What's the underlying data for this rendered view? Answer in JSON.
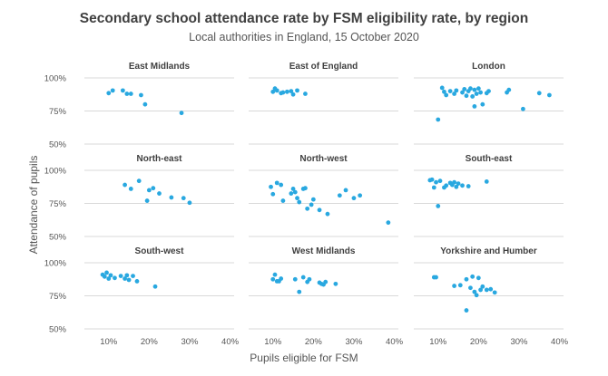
{
  "chart_data": {
    "type": "scatter",
    "title": "Secondary school attendance rate by FSM eligibility rate, by region",
    "subtitle": "Local authorities in England, 15 October 2020",
    "xlabel": "Pupils eligible for FSM",
    "ylabel": "Attendance of pupils",
    "x_ticks": [
      "10%",
      "20%",
      "30%",
      "40%"
    ],
    "y_ticks": [
      "100%",
      "75%",
      "50%"
    ],
    "xlim": [
      0.04,
      0.41
    ],
    "ylim": [
      0.5,
      1.0
    ],
    "grid": "horizontal",
    "point_color": "#29a8e0",
    "panels": [
      {
        "name": "East Midlands",
        "points": [
          [
            0.1,
            0.885
          ],
          [
            0.11,
            0.905
          ],
          [
            0.135,
            0.905
          ],
          [
            0.145,
            0.88
          ],
          [
            0.155,
            0.88
          ],
          [
            0.18,
            0.87
          ],
          [
            0.19,
            0.8
          ],
          [
            0.28,
            0.735
          ]
        ]
      },
      {
        "name": "East of England",
        "points": [
          [
            0.1,
            0.895
          ],
          [
            0.105,
            0.92
          ],
          [
            0.11,
            0.905
          ],
          [
            0.12,
            0.885
          ],
          [
            0.125,
            0.89
          ],
          [
            0.135,
            0.895
          ],
          [
            0.145,
            0.9
          ],
          [
            0.15,
            0.875
          ],
          [
            0.16,
            0.905
          ],
          [
            0.18,
            0.88
          ]
        ]
      },
      {
        "name": "London",
        "points": [
          [
            0.1,
            0.685
          ],
          [
            0.11,
            0.925
          ],
          [
            0.115,
            0.895
          ],
          [
            0.12,
            0.87
          ],
          [
            0.13,
            0.9
          ],
          [
            0.14,
            0.88
          ],
          [
            0.145,
            0.905
          ],
          [
            0.16,
            0.89
          ],
          [
            0.165,
            0.915
          ],
          [
            0.17,
            0.865
          ],
          [
            0.175,
            0.9
          ],
          [
            0.18,
            0.92
          ],
          [
            0.185,
            0.86
          ],
          [
            0.19,
            0.91
          ],
          [
            0.19,
            0.785
          ],
          [
            0.195,
            0.88
          ],
          [
            0.2,
            0.92
          ],
          [
            0.205,
            0.89
          ],
          [
            0.21,
            0.8
          ],
          [
            0.22,
            0.885
          ],
          [
            0.225,
            0.9
          ],
          [
            0.27,
            0.89
          ],
          [
            0.275,
            0.91
          ],
          [
            0.31,
            0.765
          ],
          [
            0.35,
            0.885
          ],
          [
            0.375,
            0.87
          ]
        ]
      },
      {
        "name": "North-east",
        "points": [
          [
            0.14,
            0.89
          ],
          [
            0.155,
            0.86
          ],
          [
            0.175,
            0.92
          ],
          [
            0.195,
            0.77
          ],
          [
            0.2,
            0.85
          ],
          [
            0.21,
            0.865
          ],
          [
            0.225,
            0.825
          ],
          [
            0.255,
            0.795
          ],
          [
            0.285,
            0.79
          ],
          [
            0.3,
            0.755
          ]
        ]
      },
      {
        "name": "North-west",
        "points": [
          [
            0.095,
            0.875
          ],
          [
            0.1,
            0.82
          ],
          [
            0.11,
            0.905
          ],
          [
            0.12,
            0.89
          ],
          [
            0.125,
            0.77
          ],
          [
            0.145,
            0.825
          ],
          [
            0.15,
            0.86
          ],
          [
            0.155,
            0.835
          ],
          [
            0.16,
            0.79
          ],
          [
            0.165,
            0.76
          ],
          [
            0.175,
            0.86
          ],
          [
            0.18,
            0.865
          ],
          [
            0.185,
            0.71
          ],
          [
            0.195,
            0.74
          ],
          [
            0.2,
            0.78
          ],
          [
            0.215,
            0.7
          ],
          [
            0.235,
            0.67
          ],
          [
            0.265,
            0.81
          ],
          [
            0.28,
            0.85
          ],
          [
            0.3,
            0.79
          ],
          [
            0.315,
            0.81
          ],
          [
            0.385,
            0.605
          ]
        ]
      },
      {
        "name": "South-east",
        "points": [
          [
            0.08,
            0.925
          ],
          [
            0.085,
            0.93
          ],
          [
            0.09,
            0.87
          ],
          [
            0.095,
            0.91
          ],
          [
            0.1,
            0.73
          ],
          [
            0.105,
            0.92
          ],
          [
            0.115,
            0.87
          ],
          [
            0.12,
            0.885
          ],
          [
            0.13,
            0.905
          ],
          [
            0.135,
            0.89
          ],
          [
            0.14,
            0.91
          ],
          [
            0.145,
            0.875
          ],
          [
            0.15,
            0.9
          ],
          [
            0.16,
            0.885
          ],
          [
            0.175,
            0.88
          ],
          [
            0.22,
            0.915
          ]
        ]
      },
      {
        "name": "South-west",
        "points": [
          [
            0.085,
            0.91
          ],
          [
            0.09,
            0.895
          ],
          [
            0.095,
            0.925
          ],
          [
            0.1,
            0.88
          ],
          [
            0.105,
            0.905
          ],
          [
            0.115,
            0.885
          ],
          [
            0.13,
            0.9
          ],
          [
            0.14,
            0.88
          ],
          [
            0.145,
            0.905
          ],
          [
            0.15,
            0.87
          ],
          [
            0.16,
            0.9
          ],
          [
            0.17,
            0.86
          ],
          [
            0.215,
            0.82
          ]
        ]
      },
      {
        "name": "West Midlands",
        "points": [
          [
            0.1,
            0.875
          ],
          [
            0.105,
            0.91
          ],
          [
            0.11,
            0.86
          ],
          [
            0.115,
            0.86
          ],
          [
            0.12,
            0.88
          ],
          [
            0.155,
            0.875
          ],
          [
            0.165,
            0.78
          ],
          [
            0.175,
            0.89
          ],
          [
            0.185,
            0.855
          ],
          [
            0.19,
            0.875
          ],
          [
            0.215,
            0.85
          ],
          [
            0.22,
            0.84
          ],
          [
            0.225,
            0.835
          ],
          [
            0.23,
            0.855
          ],
          [
            0.255,
            0.84
          ]
        ]
      },
      {
        "name": "Yorkshire and Humber",
        "points": [
          [
            0.09,
            0.89
          ],
          [
            0.095,
            0.89
          ],
          [
            0.14,
            0.825
          ],
          [
            0.155,
            0.83
          ],
          [
            0.17,
            0.64
          ],
          [
            0.17,
            0.875
          ],
          [
            0.18,
            0.81
          ],
          [
            0.185,
            0.895
          ],
          [
            0.19,
            0.78
          ],
          [
            0.195,
            0.755
          ],
          [
            0.2,
            0.885
          ],
          [
            0.205,
            0.795
          ],
          [
            0.21,
            0.82
          ],
          [
            0.22,
            0.795
          ],
          [
            0.23,
            0.8
          ],
          [
            0.24,
            0.775
          ]
        ]
      }
    ]
  }
}
